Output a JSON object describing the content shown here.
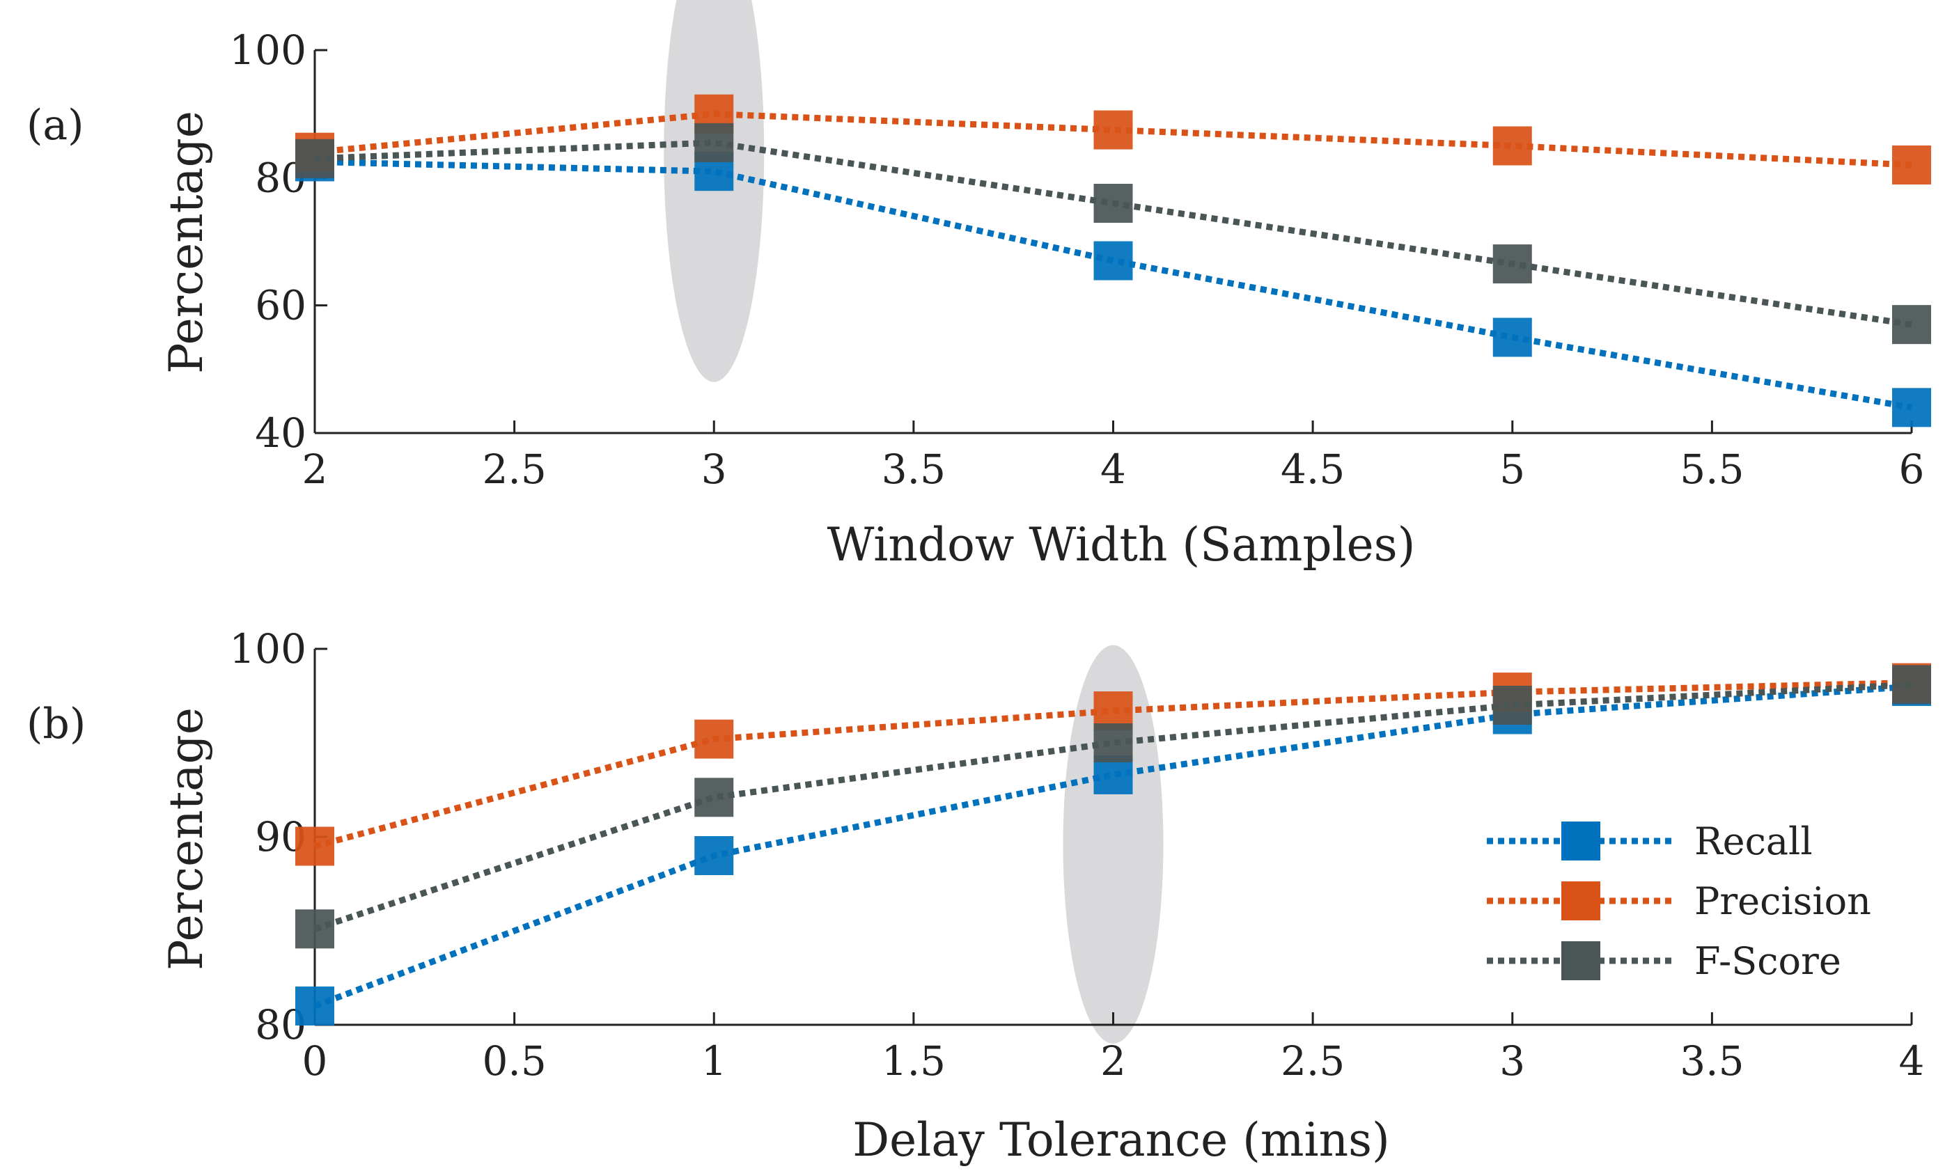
{
  "chart_data": [
    {
      "panel_label": "(a)",
      "type": "line",
      "title": "",
      "xlabel": "Window Width (Samples)",
      "ylabel": "Percentage",
      "xlim": [
        2,
        6
      ],
      "ylim": [
        40,
        100
      ],
      "x_ticks": [
        2,
        2.5,
        3,
        3.5,
        4,
        4.5,
        5,
        5.5,
        6
      ],
      "x_tick_labels": [
        "2",
        "2.5",
        "3",
        "3.5",
        "4",
        "4.5",
        "5",
        "5.5",
        "6"
      ],
      "y_ticks": [
        40,
        60,
        80,
        100
      ],
      "y_tick_labels": [
        "40",
        "60",
        "80",
        "100"
      ],
      "x": [
        2,
        3,
        4,
        5,
        6
      ],
      "series": [
        {
          "name": "Recall",
          "color": "#0072BD",
          "values": [
            82.5,
            81,
            67,
            55,
            44
          ]
        },
        {
          "name": "Precision",
          "color": "#D95319",
          "values": [
            84,
            90,
            87.5,
            85,
            82
          ]
        },
        {
          "name": "F-Score",
          "color": "#4A5555",
          "values": [
            83,
            85.5,
            76,
            66.5,
            57
          ]
        }
      ],
      "highlight": {
        "x": 3,
        "y_range": [
          48,
          120
        ]
      },
      "grid": false
    },
    {
      "panel_label": "(b)",
      "type": "line",
      "title": "",
      "xlabel": "Delay Tolerance (mins)",
      "ylabel": "Percentage",
      "xlim": [
        0,
        4
      ],
      "ylim": [
        80,
        100
      ],
      "x_ticks": [
        0,
        0.5,
        1,
        1.5,
        2,
        2.5,
        3,
        3.5,
        4
      ],
      "x_tick_labels": [
        "0",
        "0.5",
        "1",
        "1.5",
        "2",
        "2.5",
        "3",
        "3.5",
        "4"
      ],
      "y_ticks": [
        80,
        90,
        100
      ],
      "y_tick_labels": [
        "80",
        "90",
        "100"
      ],
      "x": [
        0,
        1,
        2,
        3,
        4
      ],
      "series": [
        {
          "name": "Recall",
          "color": "#0072BD",
          "values": [
            81,
            89,
            93.3,
            96.5,
            98
          ]
        },
        {
          "name": "Precision",
          "color": "#D95319",
          "values": [
            89.5,
            95.2,
            96.7,
            97.7,
            98.2
          ]
        },
        {
          "name": "F-Score",
          "color": "#4A5555",
          "values": [
            85.1,
            92.1,
            95,
            97,
            98.1
          ]
        }
      ],
      "highlight": {
        "x": 2,
        "y_range": [
          79,
          100.2
        ]
      },
      "legend": {
        "position": "lower-right",
        "entries": [
          "Recall",
          "Precision",
          "F-Score"
        ]
      },
      "grid": false
    }
  ],
  "colors": {
    "axis": "#222222",
    "highlight": "#d9d9db"
  }
}
